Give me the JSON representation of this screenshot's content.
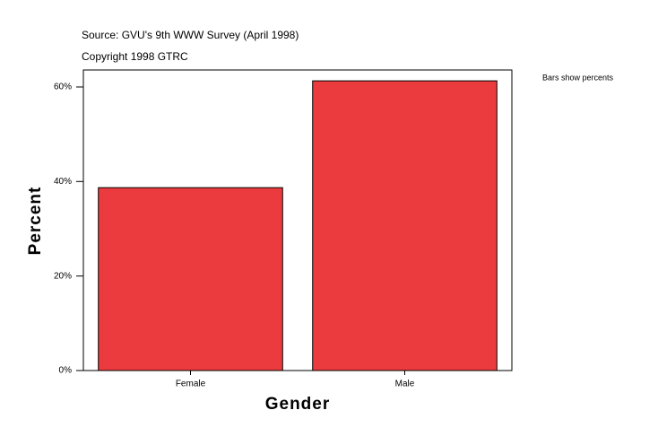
{
  "chart_data": {
    "type": "bar",
    "source": "Source: GVU's 9th WWW Survey (April 1998)",
    "copyright": "Copyright 1998 GTRC",
    "note": "Bars show percents",
    "x_label": "Gender",
    "y_label": "Percent",
    "categories": [
      "Female",
      "Male"
    ],
    "values": [
      38.7,
      61.3
    ],
    "color": "#ec3b3e",
    "ylim": [
      0,
      63.6
    ],
    "yticks": [
      {
        "value": 0,
        "label": "0%"
      },
      {
        "value": 20,
        "label": "20%"
      },
      {
        "value": 40,
        "label": "40%"
      },
      {
        "value": 60,
        "label": "60%"
      }
    ]
  }
}
